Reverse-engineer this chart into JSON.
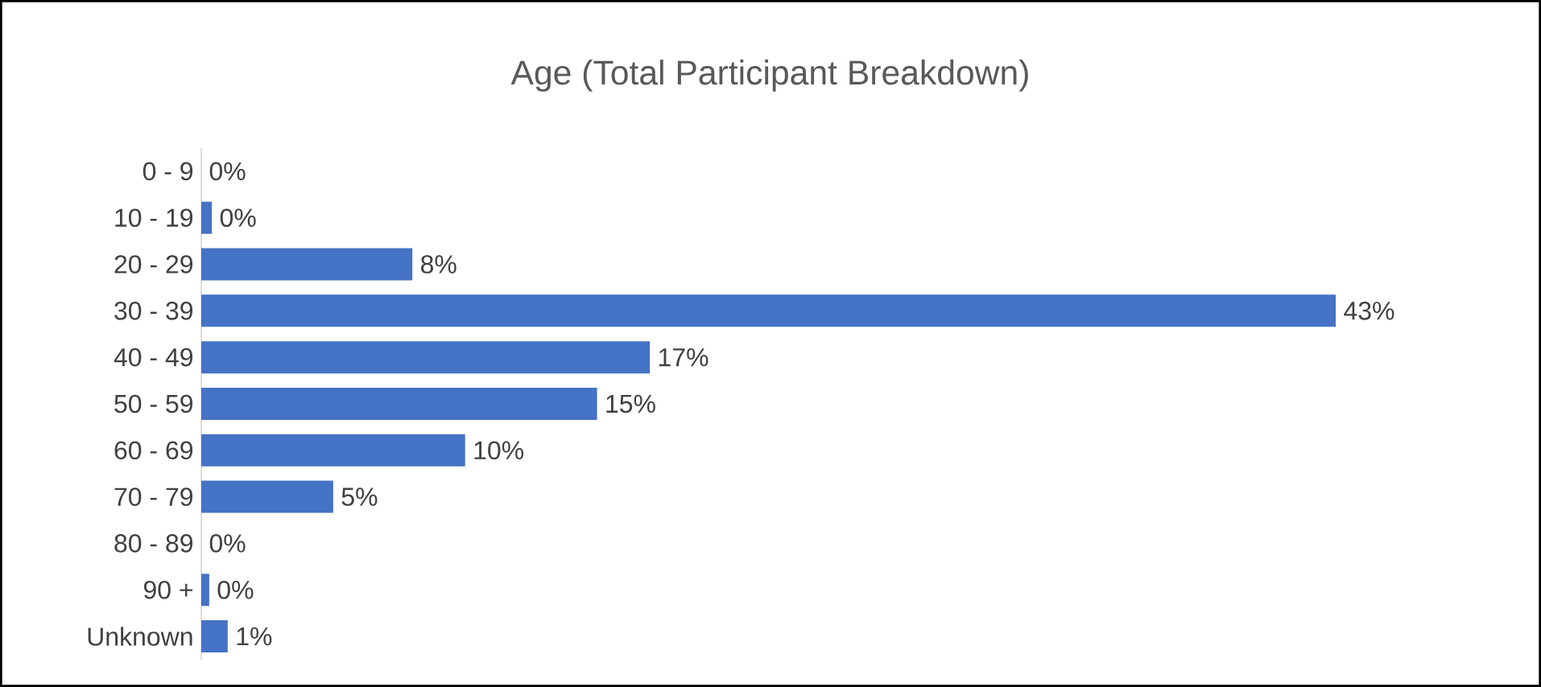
{
  "chart_data": {
    "type": "bar",
    "orientation": "horizontal",
    "title": "Age (Total Participant Breakdown)",
    "categories": [
      "0 - 9",
      "10 - 19",
      "20 - 29",
      "30 - 39",
      "40 - 49",
      "50 - 59",
      "60 - 69",
      "70 - 79",
      "80 - 89",
      "90 +",
      "Unknown"
    ],
    "values": [
      0,
      0.4,
      8,
      43,
      17,
      15,
      10,
      5,
      0,
      0.3,
      1
    ],
    "value_labels": [
      "0%",
      "0%",
      "8%",
      "43%",
      "17%",
      "15%",
      "10%",
      "5%",
      "0%",
      "0%",
      "1%"
    ],
    "color": "#4472c4",
    "grid": false
  }
}
